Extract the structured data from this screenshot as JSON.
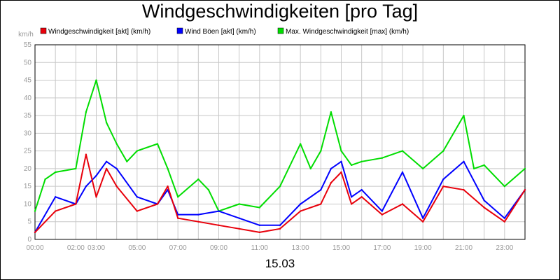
{
  "chart_data": {
    "type": "line",
    "title": "Windgeschwindigkeiten [pro Tag]",
    "unit_label": "km/h",
    "date_label": "15.03",
    "ylim": [
      0,
      55
    ],
    "y_ticks": [
      "0",
      "5",
      "10",
      "15",
      "20",
      "25",
      "30",
      "35",
      "40",
      "45",
      "50",
      "55"
    ],
    "xlim": [
      "00:00",
      "24:00"
    ],
    "x_ticks": [
      "00:00",
      "02:00",
      "03:00",
      "05:00",
      "07:00",
      "09:00",
      "11:00",
      "13:00",
      "15:00",
      "17:00",
      "19:00",
      "21:00",
      "23:00"
    ],
    "grid": true,
    "legend_position": "top",
    "series": [
      {
        "name": "Windgeschwindigkeit [akt] (km/h)",
        "color": "#e8000b",
        "x": [
          "00:00",
          "01:00",
          "02:00",
          "02:30",
          "03:00",
          "03:30",
          "04:00",
          "05:00",
          "06:00",
          "06:30",
          "07:00",
          "08:00",
          "09:00",
          "10:00",
          "11:00",
          "12:00",
          "13:00",
          "14:00",
          "14:30",
          "15:00",
          "15:30",
          "16:00",
          "17:00",
          "18:00",
          "19:00",
          "20:00",
          "21:00",
          "22:00",
          "23:00",
          "24:00"
        ],
        "values": [
          2,
          8,
          10,
          24,
          12,
          20,
          15,
          8,
          10,
          15,
          6,
          5,
          4,
          3,
          2,
          3,
          8,
          10,
          16,
          19,
          10,
          12,
          7,
          10,
          5,
          15,
          14,
          9,
          5,
          14
        ]
      },
      {
        "name": "Wind Böen [akt] (km/h)",
        "color": "#0000ff",
        "x": [
          "00:00",
          "01:00",
          "02:00",
          "02:30",
          "03:00",
          "03:30",
          "04:00",
          "05:00",
          "06:00",
          "06:30",
          "07:00",
          "08:00",
          "09:00",
          "10:00",
          "11:00",
          "12:00",
          "13:00",
          "14:00",
          "14:30",
          "15:00",
          "15:30",
          "16:00",
          "17:00",
          "18:00",
          "19:00",
          "20:00",
          "21:00",
          "22:00",
          "23:00",
          "24:00"
        ],
        "values": [
          2,
          12,
          10,
          15,
          18,
          22,
          20,
          12,
          10,
          14,
          7,
          7,
          8,
          6,
          4,
          4,
          10,
          14,
          20,
          22,
          12,
          14,
          8,
          19,
          6,
          17,
          22,
          11,
          6,
          14
        ]
      },
      {
        "name": "Max. Windgeschwindigkeit [max] (km/h)",
        "color": "#00dd00",
        "x": [
          "00:00",
          "00:30",
          "01:00",
          "02:00",
          "02:30",
          "03:00",
          "03:30",
          "04:00",
          "04:30",
          "05:00",
          "06:00",
          "06:30",
          "07:00",
          "08:00",
          "08:30",
          "09:00",
          "10:00",
          "11:00",
          "12:00",
          "13:00",
          "13:30",
          "14:00",
          "14:30",
          "15:00",
          "15:30",
          "16:00",
          "17:00",
          "18:00",
          "19:00",
          "20:00",
          "21:00",
          "21:30",
          "22:00",
          "23:00",
          "24:00"
        ],
        "values": [
          8,
          17,
          19,
          20,
          36,
          45,
          33,
          27,
          22,
          25,
          27,
          20,
          12,
          17,
          14,
          8,
          10,
          9,
          15,
          27,
          20,
          25,
          36,
          25,
          21,
          22,
          23,
          25,
          20,
          25,
          35,
          20,
          21,
          15,
          20
        ]
      }
    ]
  }
}
